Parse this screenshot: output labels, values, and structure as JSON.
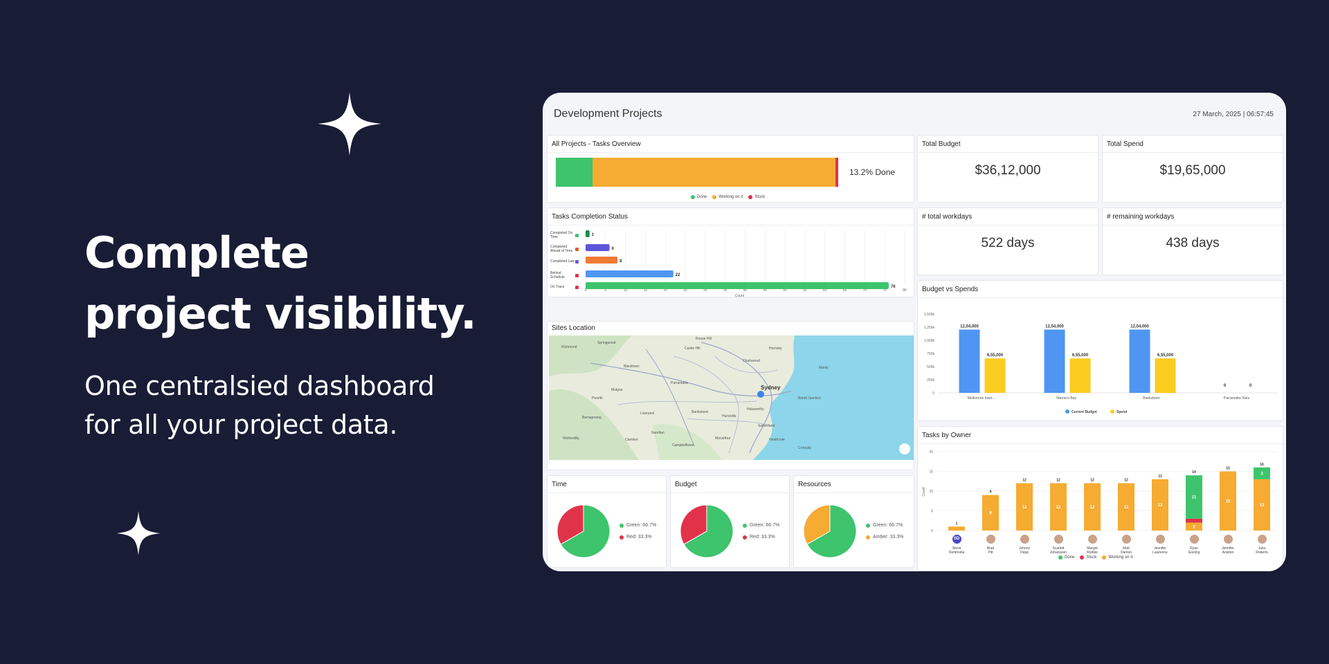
{
  "hero": {
    "title_line1": "Complete",
    "title_line2": "project visibility.",
    "subtitle_line1": "One centralsied dashboard",
    "subtitle_line2": "for all your project data."
  },
  "dashboard": {
    "title": "Development Projects",
    "timestamp": "27 March, 2025 | 06:57:45"
  },
  "tasks_overview": {
    "title": "All Projects - Tasks Overview",
    "done_label": "13.2% Done",
    "segments": [
      {
        "name": "Done",
        "fraction": 0.13,
        "color": "#3ec46d"
      },
      {
        "name": "Working on it",
        "fraction": 0.86,
        "color": "#f6ab32"
      },
      {
        "name": "Stuck",
        "fraction": 0.01,
        "color": "#e0334a"
      }
    ]
  },
  "kpis": {
    "total_budget": {
      "title": "Total Budget",
      "value": "$36,12,000"
    },
    "total_spend": {
      "title": "Total Spend",
      "value": "$19,65,000"
    },
    "total_workdays": {
      "title": "# total workdays",
      "value": "522 days"
    },
    "remaining_workdays": {
      "title": "# remaining workdays",
      "value": "438 days"
    }
  },
  "completion_status": {
    "title": "Tasks Completion Status",
    "xlabel": "Count",
    "ticks": [
      0,
      5,
      10,
      15,
      20,
      25,
      30,
      35,
      40,
      45,
      50,
      55,
      60,
      65,
      70,
      75,
      80
    ],
    "xmax": 80,
    "rows": [
      {
        "line1": "Completed On",
        "line2": "Time",
        "value": 1,
        "color": "#1f8a4c",
        "badge": "#3ec46d"
      },
      {
        "line1": "Completed",
        "line2": "Ahead of Time",
        "value": 6,
        "color": "#5b55d9",
        "badge": "#e05a2a"
      },
      {
        "line1": "Completed Late",
        "line2": "",
        "value": 8,
        "color": "#f07a34",
        "badge": "#6f5ad6"
      },
      {
        "line1": "Behind",
        "line2": "Schedule",
        "value": 22,
        "color": "#4f96f2",
        "badge": "#e0334a"
      },
      {
        "line1": "On Track",
        "line2": "",
        "value": 76,
        "color": "#3ec46d",
        "badge": "#e0334a"
      }
    ]
  },
  "sites_location": {
    "title": "Sites Location",
    "city_label": "Sydney",
    "suburbs": [
      "Springwood",
      "Rouse Hill",
      "Hornsby",
      "Blacktown",
      "Parramatta",
      "Penrith",
      "Liverpool",
      "Bankstown",
      "Camden",
      "Campbelltown",
      "Sutherland",
      "Cronulla",
      "Manly",
      "Chatswood",
      "Bondi Junction",
      "Hurstville",
      "Castle Hill",
      "Richmond",
      "Burragorang",
      "Wollondilly",
      "Mulgoa",
      "Narellan",
      "Macarthur",
      "Holsworthy",
      "Heathcote"
    ]
  },
  "budget_vs_spends": {
    "title": "Budget vs Spends",
    "chart_data": {
      "type": "bar",
      "categories": [
        "Melbourne Invel...",
        "Warners Bay",
        "Bankstown",
        "Parramatta Sites"
      ],
      "series": [
        {
          "name": "Current Budget",
          "values": [
            1204000,
            1204000,
            1204000,
            0
          ],
          "labels": [
            "12,04,000",
            "12,04,000",
            "12,04,000",
            "0"
          ],
          "color": "#4f96f2"
        },
        {
          "name": "Spend",
          "values": [
            655000,
            655000,
            655000,
            0
          ],
          "labels": [
            "6,55,000",
            "6,55,000",
            "6,55,000",
            "0"
          ],
          "color": "#f9cc1f"
        }
      ],
      "ylim": [
        0,
        1500000
      ],
      "ytick_labels": [
        "0",
        "250k",
        "500k",
        "750k",
        "1,000k",
        "1,250k",
        "1,500k"
      ]
    }
  },
  "tasks_by_owner": {
    "title": "Tasks by Owner",
    "ylabel": "Count",
    "chart_data": {
      "type": "bar",
      "stacked": true,
      "ylim": [
        0,
        20
      ],
      "yticks": [
        0,
        5,
        10,
        15,
        20
      ],
      "owners": [
        {
          "line1": "Steve",
          "line2": "Demmolia",
          "initials": "SD",
          "done": 0,
          "stuck": 0,
          "working": 1,
          "total": 1
        },
        {
          "line1": "Brad",
          "line2": "Pitt",
          "initials": "",
          "done": 0,
          "stuck": 0,
          "working": 9,
          "total": 9
        },
        {
          "line1": "Johnny",
          "line2": "Depp",
          "initials": "",
          "done": 0,
          "stuck": 0,
          "working": 12,
          "total": 12
        },
        {
          "line1": "Scarlett",
          "line2": "Johansson",
          "initials": "",
          "done": 0,
          "stuck": 0,
          "working": 12,
          "total": 12
        },
        {
          "line1": "Margot",
          "line2": "Robbie",
          "initials": "",
          "done": 0,
          "stuck": 0,
          "working": 12,
          "total": 12
        },
        {
          "line1": "Matt",
          "line2": "Damon",
          "initials": "",
          "done": 0,
          "stuck": 0,
          "working": 12,
          "total": 12
        },
        {
          "line1": "Jennifer",
          "line2": "Lawrence",
          "initials": "",
          "done": 0,
          "stuck": 0,
          "working": 13,
          "total": 13
        },
        {
          "line1": "Ryan",
          "line2": "Gosling",
          "initials": "",
          "done": 11,
          "stuck": 1,
          "working": 2,
          "total": 14
        },
        {
          "line1": "Jennifer",
          "line2": "Aniston",
          "initials": "",
          "done": 0,
          "stuck": 0,
          "working": 15,
          "total": 15
        },
        {
          "line1": "Julia",
          "line2": "Roberts",
          "initials": "",
          "done": 3,
          "stuck": 0,
          "working": 13,
          "total": 16
        }
      ],
      "series": [
        {
          "name": "Done",
          "color": "#3ec46d"
        },
        {
          "name": "Stuck",
          "color": "#e0334a"
        },
        {
          "name": "Working on it",
          "color": "#f6ab32"
        }
      ]
    }
  },
  "pies": [
    {
      "title": "Time",
      "slices": [
        {
          "label": "Green: 66.7%",
          "value": 66.7,
          "color": "#3ec46d"
        },
        {
          "label": "Red: 33.3%",
          "value": 33.3,
          "color": "#e0334a"
        }
      ]
    },
    {
      "title": "Budget",
      "slices": [
        {
          "label": "Green: 66.7%",
          "value": 66.7,
          "color": "#3ec46d"
        },
        {
          "label": "Red: 33.3%",
          "value": 33.3,
          "color": "#e0334a"
        }
      ]
    },
    {
      "title": "Resources",
      "slices": [
        {
          "label": "Green: 66.7%",
          "value": 66.7,
          "color": "#3ec46d"
        },
        {
          "label": "Amber: 33.3%",
          "value": 33.3,
          "color": "#f6ab32"
        }
      ]
    }
  ]
}
